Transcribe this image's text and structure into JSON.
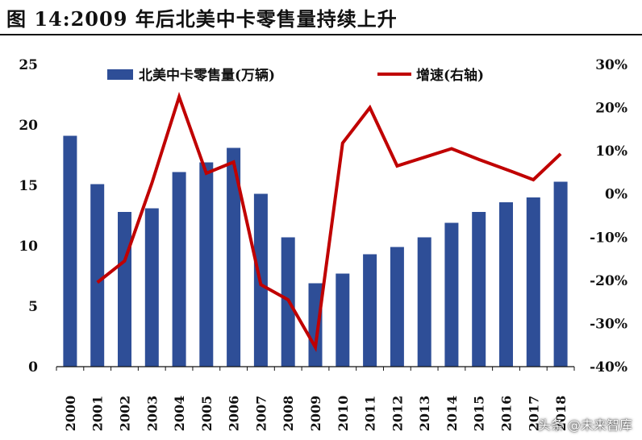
{
  "title": "图 14:2009 年后北美中卡零售量持续上升",
  "watermark": "头条 @未来智库",
  "colors": {
    "bar": "#2e4e97",
    "line": "#c00000",
    "axis": "#111111"
  },
  "chart_data": {
    "type": "bar+line",
    "categories": [
      "2000",
      "2001",
      "2002",
      "2003",
      "2004",
      "2005",
      "2006",
      "2007",
      "2008",
      "2009",
      "2010",
      "2011",
      "2012",
      "2013",
      "2014",
      "2015",
      "2016",
      "2017",
      "2018"
    ],
    "series": [
      {
        "name": "北美中卡零售量(万辆)",
        "type": "bar",
        "axis": "left",
        "values": [
          19.1,
          15.1,
          12.8,
          13.1,
          16.1,
          16.9,
          18.1,
          14.3,
          10.7,
          6.9,
          7.7,
          9.3,
          9.9,
          10.7,
          11.9,
          12.8,
          13.6,
          14.0,
          15.3
        ]
      },
      {
        "name": "增速(右轴)",
        "type": "line",
        "axis": "right",
        "values": [
          null,
          -20.5,
          -15.5,
          2.5,
          22.5,
          4.8,
          7.4,
          -21.0,
          -24.5,
          -35.5,
          11.8,
          20.0,
          6.5,
          8.5,
          10.5,
          8.0,
          5.7,
          3.3,
          9.3
        ]
      }
    ],
    "y_left": {
      "ticks": [
        "25",
        "20",
        "15",
        "10",
        "5",
        "0"
      ],
      "range": [
        0,
        25
      ]
    },
    "y_right": {
      "ticks": [
        "30%",
        "20%",
        "10%",
        "0%",
        "-10%",
        "-20%",
        "-30%",
        "-40%"
      ],
      "range": [
        -40,
        30
      ]
    },
    "legend_position": "top",
    "grid": false
  }
}
